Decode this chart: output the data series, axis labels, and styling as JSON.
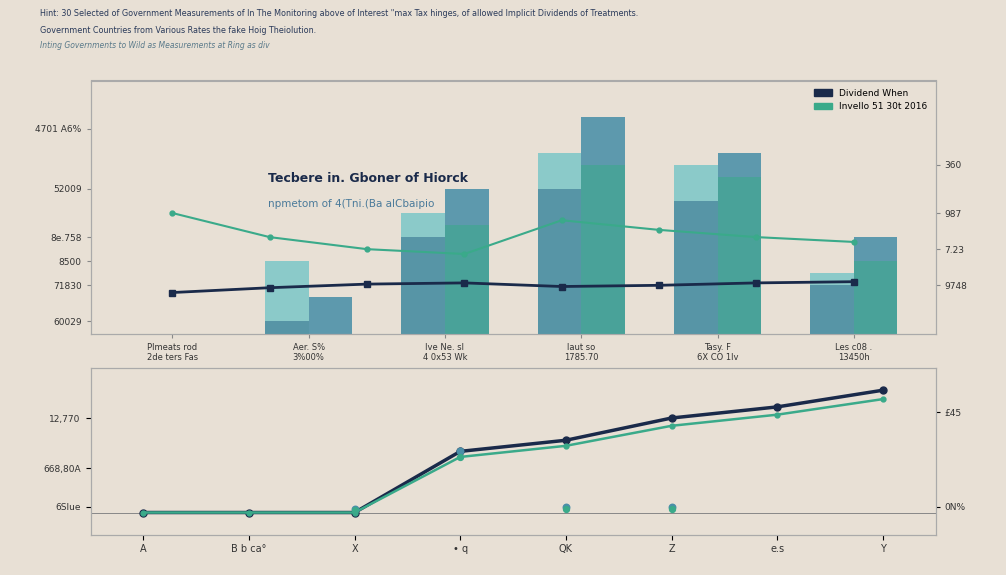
{
  "title_line1": "Hint: 30 Selected of Government Measurements of In The Monitoring above of Interest \"max Tax hinges, of allowed Implicit Dividends of Treatments.",
  "title_line2": "Government Countries from Various Rates the fake Hoig Theiolution.",
  "subtitle": "Inting Governments to Wild as Measurements at Ring as div",
  "background_color": "#e8e0d5",
  "categories_top": [
    "Plmeats rod\n2de ters Fas",
    "Aer. S%\n3%00%",
    "Ive Ne. sl\n4 0x53 Wk",
    "laut so\n1785.70",
    "Tasy. F\n6X CO 1lv",
    "Les c08 .\n13450h"
  ],
  "bar_series1": [
    0.4,
    8.5,
    10.5,
    13.0,
    12.5,
    8.0
  ],
  "bar_series2": [
    0.4,
    7.0,
    11.5,
    14.5,
    13.0,
    9.5
  ],
  "bar_series3": [
    0.2,
    6.0,
    9.5,
    11.5,
    11.0,
    7.5
  ],
  "bar_series4": [
    0.2,
    5.5,
    10.0,
    12.5,
    12.0,
    8.5
  ],
  "bar_color1": "#7ec8c8",
  "bar_color2": "#4a8fa8",
  "bar_color3": "#2d6b8a",
  "bar_color4": "#3aaa8a",
  "line1_top": [
    7.2,
    7.4,
    7.55,
    7.6,
    7.45,
    7.5,
    7.6,
    7.65
  ],
  "line2_top": [
    10.5,
    9.5,
    9.0,
    8.8,
    10.2,
    9.8,
    9.5,
    9.3
  ],
  "line1_bot": [
    0.0,
    0.0,
    0.0,
    5.5,
    6.5,
    8.5,
    9.5,
    11.0
  ],
  "line2_bot": [
    0.0,
    0.0,
    0.0,
    5.0,
    6.0,
    7.8,
    8.8,
    10.2
  ],
  "line_color1": "#1a2a4a",
  "line_color2": "#3aaa8a",
  "categories_bot": [
    "A",
    "B b ca°",
    "X",
    "• q",
    "QK",
    "Z",
    "e.s",
    "Y"
  ],
  "yticks_top_left_vals": [
    6.0,
    7.5,
    8.5,
    9.5,
    11.5,
    14.0
  ],
  "yticks_top_left_lbls": [
    "60029",
    "71830",
    "8500",
    "8e.758",
    "52009",
    "4701 A6%"
  ],
  "yticks_top_right_vals": [
    7.5,
    9.0,
    10.5,
    12.5
  ],
  "yticks_top_right_lbls": [
    "9748",
    "7.23",
    "987",
    "360"
  ],
  "yticks_bot_left_vals": [
    0.5,
    4.0,
    8.5
  ],
  "yticks_bot_left_lbls": [
    "6Slue",
    "668,80A",
    "12,770"
  ],
  "yticks_bot_right_vals": [
    0.5,
    9.0
  ],
  "yticks_bot_right_lbls": [
    "0N%",
    "£45"
  ],
  "legend_label1": "Dividend When",
  "legend_label2": "Invello 51 30t 2016",
  "annotation_text": "Tecbere in. Gboner of Hiorck",
  "annotation_sub": "npmetom of 4(Tni.(Ba alCbaipio"
}
